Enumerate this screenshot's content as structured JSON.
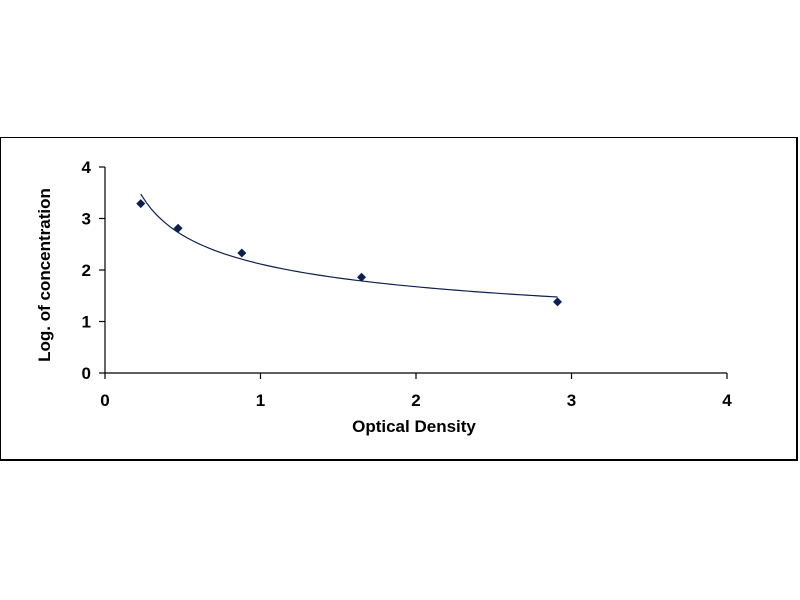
{
  "chart_data": {
    "type": "scatter",
    "title": "",
    "xlabel": "Optical Density",
    "ylabel": "Log. of concentration",
    "xlim": [
      0,
      4
    ],
    "ylim": [
      0,
      4
    ],
    "x_ticks": [
      "0",
      "1",
      "2",
      "3",
      "4"
    ],
    "y_ticks": [
      "0",
      "1",
      "2",
      "3",
      "4"
    ],
    "grid": false,
    "legend": "none",
    "series": [
      {
        "marker": "diamond",
        "color": "#0d1f4f",
        "points": [
          {
            "x": 0.23,
            "y": 3.29
          },
          {
            "x": 0.47,
            "y": 2.81
          },
          {
            "x": 0.88,
            "y": 2.33
          },
          {
            "x": 1.65,
            "y": 1.86
          },
          {
            "x": 2.91,
            "y": 1.38
          }
        ],
        "trendline": "power"
      }
    ]
  }
}
